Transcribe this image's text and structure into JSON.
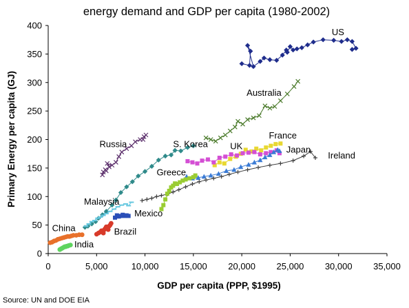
{
  "source": "Source: UN and DOE EIA",
  "chart_data": {
    "type": "scatter",
    "title": "energy demand and GDP per capita (1980-2002)",
    "xlabel": "GDP per capita (PPP, $1995)",
    "ylabel": "Primary Energy per capita (GJ)",
    "xlim": [
      0,
      35000
    ],
    "ylim": [
      0,
      400
    ],
    "xticks": [
      0,
      5000,
      10000,
      15000,
      20000,
      25000,
      30000,
      35000
    ],
    "xtick_labels": [
      "0",
      "5,000",
      "10,000",
      "15,000",
      "20,000",
      "25,000",
      "30,000",
      "35,000"
    ],
    "yticks": [
      0,
      50,
      100,
      150,
      200,
      250,
      300,
      350,
      400
    ],
    "ytick_labels": [
      "0",
      "50",
      "100",
      "150",
      "200",
      "250",
      "300",
      "350",
      "400"
    ],
    "grid": false,
    "legend": "none",
    "series": [
      {
        "name": "US",
        "color": "#1f2d8c",
        "marker": "diamond",
        "line": true,
        "label_at": [
          29300,
          383
        ],
        "points": [
          [
            20000,
            333
          ],
          [
            20800,
            330
          ],
          [
            20900,
            355
          ],
          [
            20600,
            365
          ],
          [
            21200,
            328
          ],
          [
            21900,
            337
          ],
          [
            22300,
            343
          ],
          [
            22900,
            340
          ],
          [
            23600,
            339
          ],
          [
            24200,
            348
          ],
          [
            24600,
            357
          ],
          [
            24700,
            353
          ],
          [
            25000,
            363
          ],
          [
            25300,
            357
          ],
          [
            25700,
            359
          ],
          [
            26200,
            361
          ],
          [
            26800,
            366
          ],
          [
            27400,
            371
          ],
          [
            28400,
            375
          ],
          [
            29500,
            374
          ],
          [
            30300,
            372
          ],
          [
            30900,
            375
          ],
          [
            31400,
            372
          ],
          [
            31800,
            360
          ],
          [
            31400,
            358
          ]
        ]
      },
      {
        "name": "Australia",
        "color": "#4a7a2a",
        "marker": "x",
        "line": true,
        "label_at": [
          20500,
          277
        ],
        "points": [
          [
            16300,
            203
          ],
          [
            16800,
            200
          ],
          [
            17300,
            197
          ],
          [
            17800,
            203
          ],
          [
            18300,
            208
          ],
          [
            18800,
            215
          ],
          [
            19300,
            222
          ],
          [
            19600,
            232
          ],
          [
            20100,
            227
          ],
          [
            20600,
            235
          ],
          [
            21200,
            238
          ],
          [
            21800,
            242
          ],
          [
            22400,
            259
          ],
          [
            22900,
            255
          ],
          [
            23400,
            258
          ],
          [
            24000,
            268
          ],
          [
            24700,
            280
          ],
          [
            25400,
            293
          ],
          [
            25800,
            302
          ]
        ]
      },
      {
        "name": "Russia",
        "color": "#5b2e6b",
        "marker": "x",
        "line": true,
        "label_at": [
          5300,
          187
        ],
        "points": [
          [
            5600,
            138
          ],
          [
            5700,
            143
          ],
          [
            5900,
            147
          ],
          [
            6000,
            145
          ],
          [
            6300,
            152
          ],
          [
            6100,
            158
          ],
          [
            6600,
            155
          ],
          [
            7000,
            160
          ],
          [
            7300,
            170
          ],
          [
            7600,
            178
          ],
          [
            8100,
            184
          ],
          [
            8600,
            189
          ],
          [
            9000,
            196
          ],
          [
            9500,
            200
          ],
          [
            9900,
            205
          ],
          [
            10100,
            208
          ],
          [
            9800,
            200
          ]
        ]
      },
      {
        "name": "S. Korea",
        "color": "#2f8a8a",
        "marker": "diamond",
        "line": true,
        "label_at": [
          12900,
          187
        ],
        "points": [
          [
            3800,
            46
          ],
          [
            4100,
            48
          ],
          [
            4500,
            52
          ],
          [
            4900,
            56
          ],
          [
            5200,
            62
          ],
          [
            5600,
            68
          ],
          [
            6000,
            74
          ],
          [
            6600,
            85
          ],
          [
            7000,
            94
          ],
          [
            7500,
            107
          ],
          [
            8100,
            117
          ],
          [
            8700,
            126
          ],
          [
            9300,
            136
          ],
          [
            10000,
            144
          ],
          [
            10700,
            153
          ],
          [
            11400,
            164
          ],
          [
            12100,
            171
          ],
          [
            12700,
            173
          ],
          [
            13100,
            181
          ],
          [
            13700,
            180
          ],
          [
            14400,
            186
          ],
          [
            15000,
            189
          ]
        ]
      },
      {
        "name": "France",
        "color": "#e8d832",
        "marker": "square",
        "line": true,
        "label_at": [
          22800,
          202
        ],
        "points": [
          [
            17200,
            155
          ],
          [
            17700,
            160
          ],
          [
            18200,
            158
          ],
          [
            18800,
            166
          ],
          [
            19400,
            170
          ],
          [
            19900,
            175
          ],
          [
            20400,
            182
          ],
          [
            21000,
            179
          ],
          [
            21500,
            184
          ],
          [
            22000,
            181
          ],
          [
            22500,
            186
          ],
          [
            23000,
            189
          ],
          [
            23500,
            192
          ],
          [
            24000,
            193
          ]
        ]
      },
      {
        "name": "UK",
        "color": "#d44fd4",
        "marker": "square",
        "line": true,
        "label_at": [
          18800,
          183
        ],
        "points": [
          [
            14400,
            162
          ],
          [
            14900,
            160
          ],
          [
            15400,
            158
          ],
          [
            15900,
            163
          ],
          [
            16500,
            165
          ],
          [
            17100,
            160
          ],
          [
            17700,
            168
          ],
          [
            18300,
            170
          ],
          [
            18900,
            174
          ],
          [
            19500,
            172
          ],
          [
            20100,
            176
          ],
          [
            20700,
            177
          ],
          [
            21300,
            178
          ],
          [
            21900,
            174
          ],
          [
            22500,
            176
          ],
          [
            23000,
            178
          ],
          [
            23600,
            181
          ],
          [
            23900,
            176
          ]
        ]
      },
      {
        "name": "Japan",
        "color": "#3a7bd5",
        "marker": "triangle",
        "line": true,
        "label_at": [
          24600,
          177
        ],
        "points": [
          [
            14300,
            135
          ],
          [
            14900,
            132
          ],
          [
            15500,
            133
          ],
          [
            16100,
            135
          ],
          [
            16800,
            137
          ],
          [
            17600,
            140
          ],
          [
            18400,
            145
          ],
          [
            19200,
            147
          ],
          [
            19900,
            152
          ],
          [
            20700,
            156
          ],
          [
            21300,
            160
          ],
          [
            21900,
            164
          ],
          [
            22400,
            169
          ],
          [
            22900,
            173
          ],
          [
            23300,
            178
          ],
          [
            23700,
            182
          ],
          [
            23900,
            180
          ]
        ]
      },
      {
        "name": "Ireland",
        "color": "#404040",
        "marker": "plus",
        "line": true,
        "label_at": [
          28900,
          167
        ],
        "points": [
          [
            9700,
            93
          ],
          [
            10200,
            95
          ],
          [
            10700,
            97
          ],
          [
            11200,
            100
          ],
          [
            11700,
            102
          ],
          [
            12300,
            104
          ],
          [
            12900,
            108
          ],
          [
            13500,
            112
          ],
          [
            14200,
            117
          ],
          [
            14900,
            122
          ],
          [
            15600,
            126
          ],
          [
            16300,
            129
          ],
          [
            17100,
            132
          ],
          [
            17900,
            135
          ],
          [
            18700,
            139
          ],
          [
            19600,
            143
          ],
          [
            20600,
            147
          ],
          [
            21700,
            151
          ],
          [
            22900,
            155
          ],
          [
            24000,
            158
          ],
          [
            25300,
            163
          ],
          [
            26400,
            171
          ],
          [
            27100,
            179
          ],
          [
            27600,
            168
          ]
        ]
      },
      {
        "name": "Greece",
        "color": "#9acd32",
        "marker": "square",
        "line": true,
        "label_at": [
          11200,
          137
        ],
        "points": [
          [
            11700,
            78
          ],
          [
            11900,
            85
          ],
          [
            12100,
            95
          ],
          [
            12300,
            105
          ],
          [
            12500,
            110
          ],
          [
            12700,
            116
          ],
          [
            12900,
            119
          ],
          [
            13100,
            123
          ],
          [
            13300,
            122
          ],
          [
            13600,
            125
          ],
          [
            13900,
            128
          ],
          [
            14200,
            130
          ],
          [
            14600,
            132
          ],
          [
            15000,
            134
          ],
          [
            15200,
            137
          ]
        ]
      },
      {
        "name": "Malaysia",
        "color": "#66c8e0",
        "marker": "dash",
        "line": true,
        "label_at": [
          3700,
          86
        ],
        "points": [
          [
            3900,
            48
          ],
          [
            4200,
            52
          ],
          [
            4500,
            56
          ],
          [
            4800,
            58
          ],
          [
            5100,
            62
          ],
          [
            5400,
            64
          ],
          [
            5700,
            67
          ],
          [
            6000,
            70
          ],
          [
            6400,
            74
          ],
          [
            6800,
            78
          ],
          [
            7200,
            82
          ],
          [
            7600,
            85
          ],
          [
            8000,
            87
          ],
          [
            8300,
            84
          ],
          [
            8600,
            90
          ]
        ]
      },
      {
        "name": "Mexico",
        "color": "#2a4fb8",
        "marker": "square",
        "line": true,
        "label_at": [
          8900,
          65
        ],
        "points": [
          [
            6900,
            63
          ],
          [
            7100,
            67
          ],
          [
            7300,
            65
          ],
          [
            7500,
            66
          ],
          [
            7700,
            68
          ],
          [
            7900,
            66
          ],
          [
            8100,
            67
          ],
          [
            8300,
            66
          ]
        ]
      },
      {
        "name": "Brazil",
        "color": "#d83a2a",
        "marker": "circle",
        "line": true,
        "label_at": [
          6800,
          33
        ],
        "points": [
          [
            5000,
            34
          ],
          [
            5200,
            36
          ],
          [
            5400,
            38
          ],
          [
            5500,
            40
          ],
          [
            5700,
            36
          ],
          [
            5800,
            42
          ],
          [
            5900,
            44
          ],
          [
            6000,
            47
          ],
          [
            6100,
            45
          ],
          [
            6200,
            42
          ],
          [
            6300,
            48
          ],
          [
            6400,
            50
          ],
          [
            6500,
            53
          ]
        ]
      },
      {
        "name": "China",
        "color": "#e8702a",
        "marker": "circle",
        "line": true,
        "label_at": [
          400,
          39
        ],
        "points": [
          [
            200,
            19
          ],
          [
            400,
            20
          ],
          [
            600,
            22
          ],
          [
            800,
            23
          ],
          [
            1000,
            25
          ],
          [
            1200,
            26
          ],
          [
            1400,
            27
          ],
          [
            1600,
            28
          ],
          [
            1800,
            29
          ],
          [
            2000,
            30
          ],
          [
            2200,
            30
          ],
          [
            2400,
            31
          ],
          [
            2600,
            32
          ],
          [
            2900,
            32
          ],
          [
            3200,
            33
          ],
          [
            3500,
            33
          ]
        ]
      },
      {
        "name": "India",
        "color": "#5fd45f",
        "marker": "circle",
        "line": true,
        "label_at": [
          2700,
          11
        ],
        "points": [
          [
            1200,
            7
          ],
          [
            1300,
            8
          ],
          [
            1400,
            9
          ],
          [
            1500,
            10
          ],
          [
            1600,
            11
          ],
          [
            1700,
            12
          ],
          [
            1800,
            12
          ],
          [
            1900,
            13
          ],
          [
            2000,
            13
          ],
          [
            2100,
            14
          ],
          [
            2300,
            15
          ]
        ]
      }
    ]
  }
}
